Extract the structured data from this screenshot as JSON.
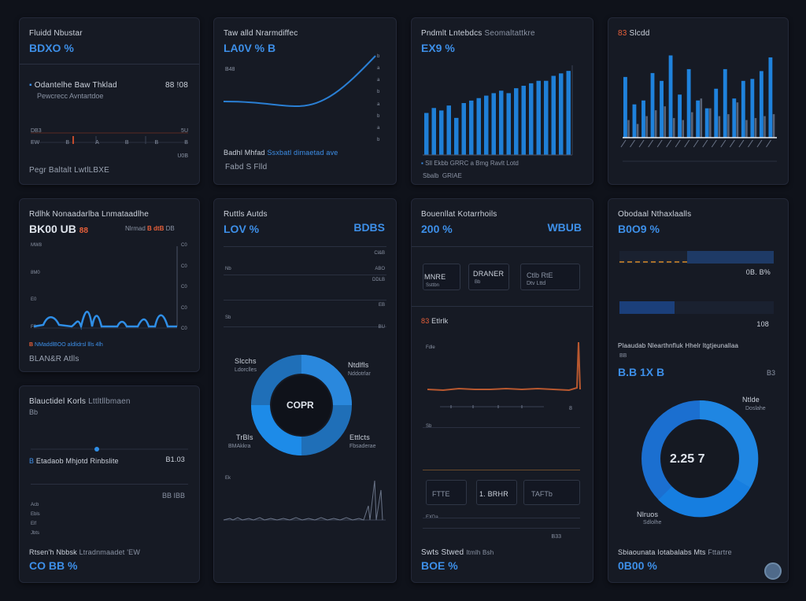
{
  "cards": {
    "c1": {
      "title": "Fluidd Nbustar",
      "value": "BDXO %",
      "row_label": "Odantelhe Baw Thklad",
      "row_value": "88 !08",
      "row_sub": "Pewcrecc Avntartdoe",
      "axis_top": "DB3",
      "axis_mid": "5U",
      "axis_low": "U0B",
      "tick_labels": [
        "EW",
        "B",
        "A",
        "B",
        "B",
        "B"
      ],
      "footer": "Pegr Baltalt LwtlLBXE"
    },
    "c2": {
      "title": "Taw alld Nrarmdiffec",
      "value": "LA0V % B",
      "y_left": "B48",
      "right_ticks": [
        "b",
        "a",
        "a",
        "b",
        "a",
        "b",
        "a",
        "b"
      ],
      "footer_label": "Badhl Mhfad",
      "footer_link": "Ssxbatl dimaetad ave",
      "footer_sub": "Fabd S Flld"
    },
    "c3": {
      "title": "Pndmlt Lntebdcs",
      "title_sub": "Seomaltattkre",
      "value": "EX9 %",
      "legend_a": "Sll Ekbb",
      "legend_b": "GRRC a Bmg",
      "legend_c": "Ravlt Lotd",
      "footer": "Sbalb",
      "footer2": "GRIAE",
      "bars": [
        34,
        38,
        36,
        40,
        30,
        42,
        44,
        46,
        48,
        50,
        52,
        50,
        54,
        56,
        58,
        60,
        60,
        64,
        66,
        68
      ]
    },
    "c4": {
      "title": "Slcdd",
      "badge": "83",
      "bars_a": [
        62,
        34,
        38,
        66,
        58,
        84,
        44,
        70,
        38,
        30,
        50,
        70,
        40,
        58,
        60,
        68,
        82
      ],
      "bars_b": [
        18,
        14,
        22,
        28,
        32,
        20,
        18,
        26,
        40,
        30,
        22,
        24,
        36,
        18,
        20,
        22,
        24
      ]
    },
    "c5": {
      "title": "Rdlhk Nonaadarlba Lnmataadlhe",
      "value": "BK00 UB",
      "badge": "88",
      "right_label": "Nlrmad",
      "right_value": "B dtB",
      "right_sub": "DB",
      "y_ticks": [
        "C0",
        "C0",
        "C0",
        "C0",
        "C0"
      ],
      "left_ticks": [
        "MW8",
        "8M0",
        "E0",
        "F0"
      ],
      "legend_badge": "B",
      "legend": "NMaddlBOO aldlidrsl llls 4lh",
      "footer": "BLAN&R Atlls"
    },
    "c6": {
      "title": "Ruttls Autds",
      "value_left": "LOV %",
      "value_right": "BDBS",
      "right_ticks": [
        "Cl&B",
        "ABO",
        "DDLB",
        "EB",
        "BU"
      ],
      "left_ticks": [
        "Nb",
        "Sb"
      ],
      "donut_center": "COPR",
      "donut_label_a": "Slcchs",
      "donut_label_a_sub": "Ldorclles",
      "donut_label_b": "Ntdlfls",
      "donut_label_b_sub": "Nddotrlar",
      "donut_label_c": "TrBls",
      "donut_label_c_sub": "BMAkkra",
      "donut_label_d": "Ettlcts",
      "donut_label_d_sub": "Fbsaderae",
      "spark_ticks": [
        "Ek"
      ]
    },
    "c7": {
      "title": "Bouenllat Kotarrhoils",
      "value": "200 %",
      "value_right": "WBUB",
      "box_a": "MNRE",
      "box_a_sub": "Ssttbn",
      "box_b": "DRANER",
      "box_b_sub": "Bb",
      "box_c": "Ctlb RtE",
      "box_c_sub": "Dtv Lttd",
      "section": "Etlrlk",
      "section_badge": "83",
      "left_ticks": [
        "Fdle",
        "Sb",
        "EXDa"
      ],
      "footer": "Swts Stwed",
      "footer_sub": "Itmlh Bsh",
      "footer_value": "BOE %",
      "bottom_boxes": [
        "FTTE",
        "1. BRHR",
        "TAFTb"
      ],
      "bottom_badge": "B33"
    },
    "c8": {
      "title": "Obodaal Nthaxlaalls",
      "value": "B0O9 %",
      "bar1_value": "0B. B%",
      "bar2_value": "108",
      "heading": "Plaaudab Nlearthnfluk Hhelr ltgtjeunallaa",
      "heading_sub": "BB",
      "value2": "B.B 1X B",
      "value2_right": "B3",
      "donut_label": "Ntlde",
      "donut_label_sub": "Doslahe",
      "donut_label_b": "Nlruos",
      "donut_label_b_sub": "Sdlolhe",
      "donut_center": "2.25 7",
      "footer": "Sbiaounata Iotabalabs Mts",
      "footer_sub": "Fttartre",
      "footer_value": "0B00 %"
    },
    "c9": {
      "title": "Blauctidel Korls",
      "title_sub": "Lttltllbmaen",
      "subtitle": "Bb",
      "row_label": "Etadaob Mhjotd Rinbslite",
      "row_badge": "B",
      "row_value": "B1.03",
      "y_ticks": [
        "Acb",
        "Ebls",
        "Elf",
        "Jbts"
      ],
      "right_val": "BB IBB",
      "footer": "Rtsen'h Nbbsk",
      "footer_sub": "Ltradnmaadet 'EW",
      "footer_value": "CO BB %"
    }
  },
  "colors": {
    "accent": "#3d8fe8",
    "orange": "#e8603a",
    "bg": "#0f121a",
    "card": "#161a24"
  }
}
